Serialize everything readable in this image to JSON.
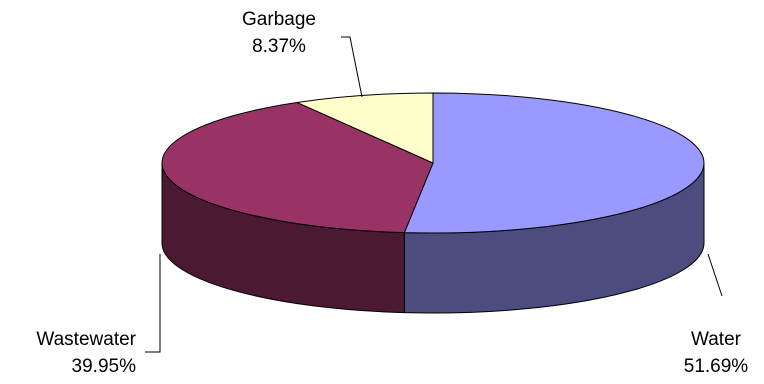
{
  "chart_data": {
    "type": "pie",
    "style": "3d",
    "title": "",
    "slices": [
      {
        "label": "Water",
        "value": 51.69,
        "display": "51.69%",
        "color": "#9999ff",
        "side_color": "#4c4c7f"
      },
      {
        "label": "Wastewater",
        "value": 39.95,
        "display": "39.95%",
        "color": "#993366",
        "side_color": "#4c1932"
      },
      {
        "label": "Garbage",
        "value": 8.37,
        "display": "8.37%",
        "color": "#ffffcc",
        "side_color": "#7f7f66"
      }
    ],
    "legend": "none"
  }
}
